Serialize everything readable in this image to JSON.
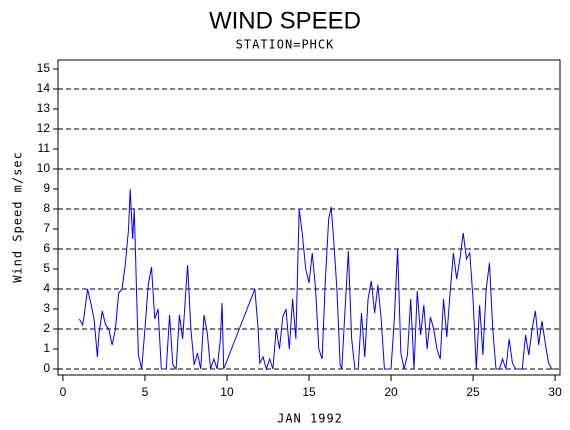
{
  "chart_data": {
    "type": "line",
    "title": "WIND SPEED",
    "subtitle": "STATION=PHCK",
    "x_label": "JAN 1992",
    "y_label": "Wind Speed m/sec",
    "xlim": [
      -0.3,
      30.3
    ],
    "ylim": [
      -0.3,
      15.45
    ],
    "xticks": [
      0,
      5,
      10,
      15,
      20,
      25,
      30
    ],
    "yticks": [
      0,
      1,
      2,
      3,
      4,
      5,
      6,
      7,
      8,
      9,
      10,
      11,
      12,
      13,
      14,
      15
    ],
    "gridlines": [
      0,
      2,
      4,
      6,
      8,
      10,
      12,
      14
    ],
    "color": "#0000ff",
    "x": [
      1.0,
      1.2,
      1.3,
      1.5,
      1.7,
      1.9,
      2.1,
      2.2,
      2.4,
      2.6,
      2.8,
      3.0,
      3.2,
      3.4,
      3.6,
      3.8,
      4.0,
      4.1,
      4.25,
      4.35,
      4.5,
      4.6,
      4.8,
      5.0,
      5.2,
      5.4,
      5.6,
      5.8,
      6.0,
      6.3,
      6.5,
      6.7,
      6.9,
      7.1,
      7.3,
      7.5,
      7.6,
      7.8,
      8.0,
      8.2,
      8.4,
      8.6,
      8.8,
      9.0,
      9.2,
      9.4,
      9.6,
      9.7,
      9.8,
      11.7,
      11.9,
      12.0,
      12.2,
      12.4,
      12.6,
      12.8,
      13.0,
      13.2,
      13.4,
      13.6,
      13.8,
      14.0,
      14.2,
      14.4,
      14.6,
      14.8,
      15.0,
      15.2,
      15.4,
      15.6,
      15.8,
      16.0,
      16.2,
      16.35,
      16.5,
      16.7,
      16.9,
      17.0,
      17.2,
      17.4,
      17.6,
      17.8,
      18.0,
      18.2,
      18.4,
      18.6,
      18.8,
      19.0,
      19.2,
      19.4,
      19.6,
      20.0,
      20.2,
      20.4,
      20.6,
      20.8,
      21.0,
      21.2,
      21.4,
      21.6,
      21.8,
      22.0,
      22.2,
      22.4,
      22.6,
      22.8,
      23.0,
      23.2,
      23.4,
      23.6,
      23.8,
      24.0,
      24.2,
      24.4,
      24.6,
      24.8,
      25.0,
      25.2,
      25.4,
      25.6,
      25.8,
      26.0,
      26.2,
      26.4,
      26.6,
      26.8,
      27.0,
      27.2,
      27.4,
      27.6,
      28.0,
      28.2,
      28.4,
      28.6,
      28.8,
      29.0,
      29.2,
      29.4,
      29.6,
      29.8,
      30.0
    ],
    "values": [
      2.5,
      2.2,
      2.7,
      4.0,
      3.3,
      2.5,
      0.6,
      1.8,
      2.9,
      2.2,
      2.0,
      1.2,
      2.0,
      3.8,
      4.0,
      5.2,
      7.0,
      9.0,
      6.5,
      8.0,
      3.5,
      0.7,
      0,
      2.0,
      4.2,
      5.1,
      2.5,
      3.0,
      0,
      0,
      2.7,
      0.2,
      0,
      2.7,
      1.5,
      4.0,
      5.2,
      2.0,
      0.2,
      0.8,
      0,
      2.7,
      1.8,
      0,
      0.5,
      0,
      1.5,
      3.3,
      0,
      4.0,
      2.0,
      0.3,
      0.6,
      0,
      0.5,
      0,
      2.0,
      1.0,
      2.6,
      3.0,
      1.0,
      3.5,
      1.5,
      8.0,
      6.7,
      5.0,
      4.3,
      5.8,
      4.0,
      1.0,
      0.5,
      4.5,
      7.5,
      8.1,
      6.5,
      4.0,
      0.2,
      0,
      3.0,
      5.9,
      1.5,
      0,
      0,
      2.8,
      0.6,
      3.5,
      4.4,
      2.8,
      4.2,
      2.5,
      0,
      0,
      2.5,
      6.0,
      0.8,
      0,
      0.7,
      3.5,
      0,
      3.9,
      1.7,
      3.2,
      1.0,
      2.6,
      2.0,
      1.0,
      0.5,
      3.5,
      1.6,
      3.8,
      5.8,
      4.5,
      5.5,
      6.8,
      5.5,
      5.8,
      3.5,
      0,
      3.2,
      0.7,
      4.0,
      5.3,
      2.0,
      0,
      0,
      0.5,
      0,
      1.5,
      0.3,
      0,
      0,
      1.7,
      0.7,
      2.0,
      2.9,
      1.2,
      2.4,
      1.3,
      0.3,
      0,
      0
    ]
  }
}
